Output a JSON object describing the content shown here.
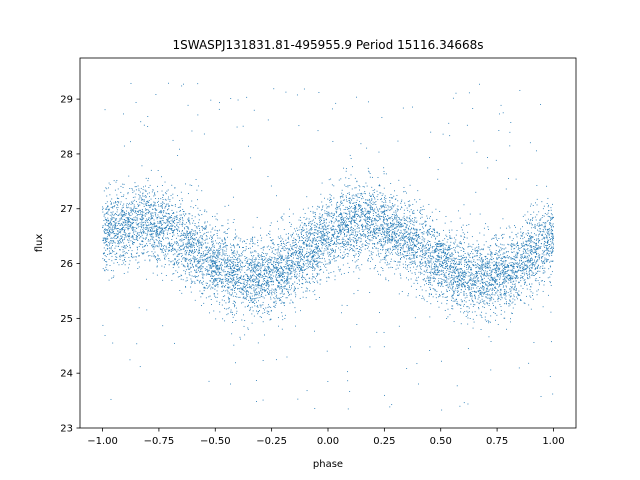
{
  "chart_data": {
    "type": "scatter",
    "title": "1SWASPJ131831.81-495955.9 Period 15116.34668s",
    "xlabel": "phase",
    "ylabel": "flux",
    "xlim": [
      -1.1,
      1.1
    ],
    "ylim": [
      23.0,
      29.75
    ],
    "xticks": [
      -1.0,
      -0.75,
      -0.5,
      -0.25,
      0.0,
      0.25,
      0.5,
      0.75,
      1.0
    ],
    "xtick_labels": [
      "−1.00",
      "−0.75",
      "−0.50",
      "−0.25",
      "0.00",
      "0.25",
      "0.50",
      "0.75",
      "1.00"
    ],
    "yticks": [
      23,
      24,
      25,
      26,
      27,
      28,
      29
    ],
    "ytick_labels": [
      "23",
      "24",
      "25",
      "26",
      "27",
      "28",
      "29"
    ],
    "grid": false,
    "legend": "none",
    "point_color": "#1f77b4",
    "series": [
      {
        "model": "sinusoid: flux = mean + amplitude * sin(2*pi*(phase - phase_at_mean_rising)), dense noisy scatter",
        "x_range": [
          -1.0,
          1.0
        ],
        "mean": 26.25,
        "amplitude": 0.5,
        "phase_at_mean_rising": -0.08,
        "max_at_phase": [
          -0.83,
          0.17
        ],
        "min_at_phase": [
          -0.33,
          0.67
        ],
        "scatter_sigma": 0.35,
        "outlier_range": [
          23.3,
          29.4
        ],
        "x": [
          -1.0,
          -0.83,
          -0.58,
          -0.33,
          -0.08,
          0.17,
          0.42,
          0.67,
          0.92,
          1.0
        ],
        "y": [
          26.6,
          26.75,
          26.25,
          25.75,
          26.25,
          26.75,
          26.25,
          25.75,
          26.25,
          26.6
        ]
      }
    ]
  }
}
